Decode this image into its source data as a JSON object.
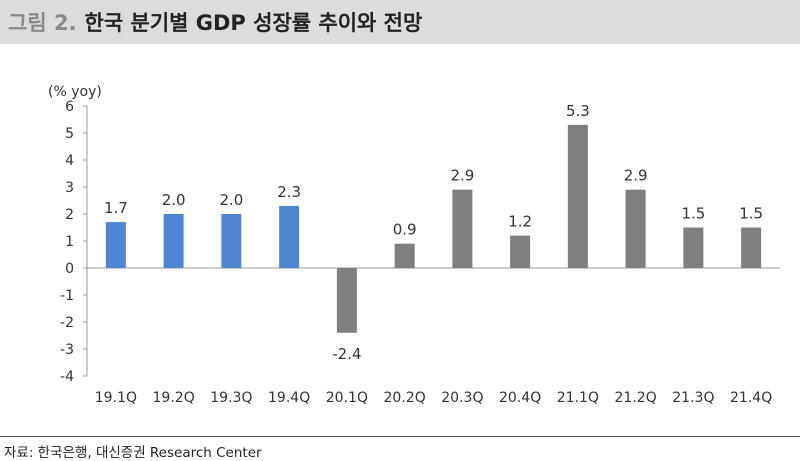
{
  "header": {
    "figure_label": "그림 2.",
    "title": "한국 분기별 GDP 성장률 추이와 전망"
  },
  "source_text": "자료: 한국은행, 대신증권 Research Center",
  "colors": {
    "header_bg": "#dcdcdc",
    "actual_bar": "#4f86d4",
    "forecast_bar": "#7f7f7f"
  },
  "chart_data": {
    "type": "bar",
    "unit_label": "(% yoy)",
    "categories": [
      "19.1Q",
      "19.2Q",
      "19.3Q",
      "19.4Q",
      "20.1Q",
      "20.2Q",
      "20.3Q",
      "20.4Q",
      "21.1Q",
      "21.2Q",
      "21.3Q",
      "21.4Q"
    ],
    "values": [
      1.7,
      2.0,
      2.0,
      2.3,
      -2.4,
      0.9,
      2.9,
      1.2,
      5.3,
      2.9,
      1.5,
      1.5
    ],
    "data_labels": [
      "1.7",
      "2.0",
      "2.0",
      "2.3",
      "-2.4",
      "0.9",
      "2.9",
      "1.2",
      "5.3",
      "2.9",
      "1.5",
      "1.5"
    ],
    "bar_colors": [
      "blue",
      "blue",
      "blue",
      "blue",
      "gray",
      "gray",
      "gray",
      "gray",
      "gray",
      "gray",
      "gray",
      "gray"
    ],
    "ylim": [
      -4,
      6
    ],
    "yticks": [
      -4,
      -3,
      -2,
      -1,
      0,
      1,
      2,
      3,
      4,
      5,
      6
    ],
    "ytick_labels": [
      "-4",
      "-3",
      "-2",
      "-1",
      "0",
      "1",
      "2",
      "3",
      "4",
      "5",
      "6"
    ],
    "grid": false,
    "legend": "none"
  }
}
